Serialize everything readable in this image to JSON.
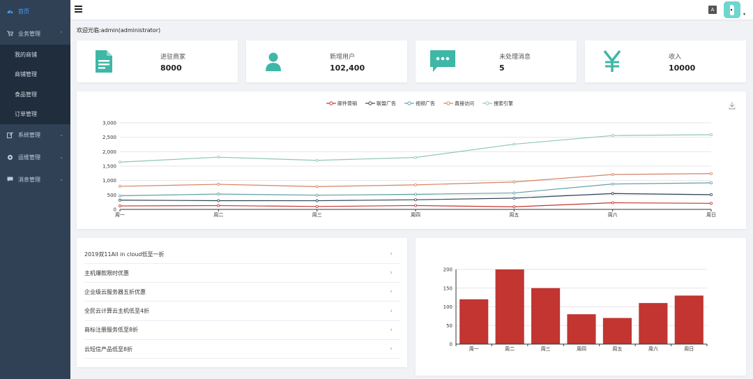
{
  "sidebar": {
    "menu": [
      {
        "label": "首页",
        "icon": "dashboard-icon",
        "active": true
      },
      {
        "label": "业务管理",
        "icon": "cart-icon",
        "arrow": "^"
      },
      {
        "label": "系统管理",
        "icon": "edit-icon",
        "arrow": "v"
      },
      {
        "label": "运维管理",
        "icon": "gear-icon",
        "arrow": "v"
      },
      {
        "label": "消息管理",
        "icon": "message-icon",
        "arrow": "v"
      }
    ],
    "submenu": [
      "我的商铺",
      "商铺管理",
      "食品管理",
      "订单管理"
    ]
  },
  "header": {
    "lang_icon": "A",
    "caret": "▾"
  },
  "welcome": "欢迎光临:admin(administrator)",
  "stats": [
    {
      "label": "进驻商家",
      "value": "8000",
      "icon": "document-icon"
    },
    {
      "label": "新增用户",
      "value": "102,400",
      "icon": "user-icon"
    },
    {
      "label": "未处理消息",
      "value": "5",
      "icon": "chat-icon"
    },
    {
      "label": "收入",
      "value": "10000",
      "icon": "yen-icon"
    }
  ],
  "colors": {
    "accent": "#3eb7a6",
    "sidebar": "#304156",
    "bar": "#c23531"
  },
  "news": [
    "2019双11All in cloud低至一折",
    "主机爆款限时优惠",
    "企业级云服务器五折优惠",
    "全民云计算云主机低至4折",
    "商标注册服务低至8折",
    "云短信产品低至8折"
  ],
  "chart_data": [
    {
      "type": "line",
      "categories": [
        "周一",
        "周二",
        "周三",
        "周四",
        "周五",
        "周六",
        "周日"
      ],
      "ylim": [
        0,
        3000
      ],
      "yticks": [
        "0",
        "500",
        "1,000",
        "1,500",
        "2,000",
        "2,500",
        "3,000"
      ],
      "legend_position": "top",
      "series": [
        {
          "name": "邮件营销",
          "color": "#c23531",
          "values": [
            120,
            132,
            101,
            134,
            90,
            230,
            210
          ]
        },
        {
          "name": "联盟广告",
          "color": "#2f4554",
          "values": [
            320,
            302,
            301,
            334,
            390,
            550,
            510
          ]
        },
        {
          "name": "视频广告",
          "color": "#61a0a8",
          "values": [
            470,
            534,
            491,
            524,
            570,
            880,
            920
          ]
        },
        {
          "name": "直接访问",
          "color": "#d48265",
          "values": [
            800,
            870,
            790,
            850,
            950,
            1210,
            1240
          ]
        },
        {
          "name": "搜索引擎",
          "color": "#91c7ae",
          "values": [
            1640,
            1810,
            1700,
            1800,
            2260,
            2560,
            2590
          ]
        }
      ]
    },
    {
      "type": "bar",
      "categories": [
        "周一",
        "周二",
        "周三",
        "周四",
        "周五",
        "周六",
        "周日"
      ],
      "values": [
        120,
        200,
        150,
        80,
        70,
        110,
        130
      ],
      "ylim": [
        0,
        200
      ],
      "yticks": [
        "0",
        "50",
        "100",
        "150",
        "200"
      ]
    }
  ]
}
